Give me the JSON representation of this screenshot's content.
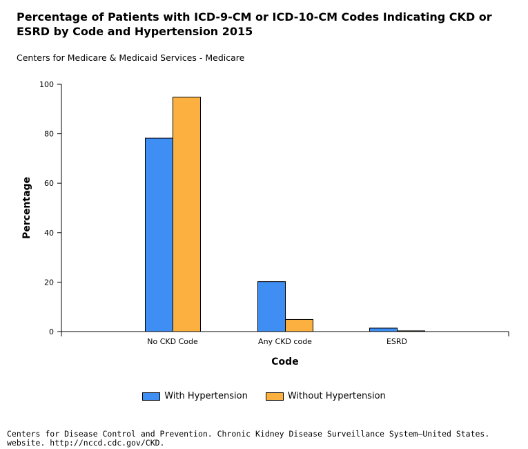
{
  "header": {
    "title": "Percentage of Patients with ICD-9-CM or ICD-10-CM Codes Indicating CKD or ESRD by Code and Hypertension 2015",
    "subtitle": "Centers for Medicare & Medicaid Services - Medicare"
  },
  "footer": {
    "source_line1": "Centers for Disease Control and Prevention. Chronic Kidney Disease Surveillance System—United States.",
    "source_line2": "website. http://nccd.cdc.gov/CKD."
  },
  "colors": {
    "with_hypertension": "#3f8ef3",
    "without_hypertension": "#fbb040"
  },
  "chart_data": {
    "type": "bar",
    "title": "Percentage of Patients with ICD-9-CM or ICD-10-CM Codes Indicating CKD or ESRD by Code and Hypertension 2015",
    "xlabel": "Code",
    "ylabel": "Percentage",
    "ylim": [
      0,
      100
    ],
    "yticks": [
      0,
      20,
      40,
      60,
      80,
      100
    ],
    "categories": [
      "No CKD Code",
      "Any CKD code",
      "ESRD"
    ],
    "series": [
      {
        "name": "With Hypertension",
        "values": [
          78.2,
          20.2,
          1.4
        ]
      },
      {
        "name": "Without Hypertension",
        "values": [
          94.8,
          4.9,
          0.3
        ]
      }
    ],
    "legend_position": "bottom"
  }
}
